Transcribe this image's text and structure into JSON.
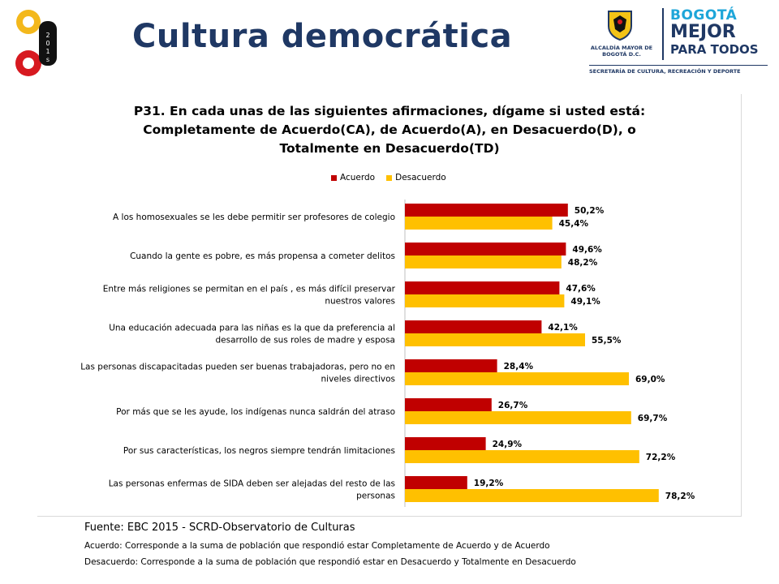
{
  "header": {
    "title": "Cultura democrática",
    "logo_left_text": "201s",
    "alcaldia": "ALCALDÍA MAYOR DE BOGOTÁ D.C.",
    "bogota_l1": "BOGOTÁ",
    "bogota_l2": "MEJOR",
    "bogota_l3": "PARA TODOS",
    "secretaria": "SECRETARÍA DE CULTURA, RECREACIÓN Y DEPORTE"
  },
  "colors": {
    "acuerdo": "#C00000",
    "desacuerdo": "#FFC000",
    "title": "#1f3864"
  },
  "chart_data": {
    "type": "bar",
    "orientation": "horizontal",
    "title_lines": [
      "P31. En cada unas de las siguientes afirmaciones, dígame si usted está:",
      "Completamente de Acuerdo(CA), de Acuerdo(A), en Desacuerdo(D), o",
      "Totalmente en Desacuerdo(TD)"
    ],
    "legend_position": "top",
    "categories": [
      [
        "A los homosexuales se les debe permitir ser profesores de colegio"
      ],
      [
        "Cuando la gente es pobre, es más propensa a cometer delitos"
      ],
      [
        "Entre más religiones se permitan en el país , es más difícil preservar",
        "nuestros valores"
      ],
      [
        "Una educación adecuada para las niñas es la que da preferencia al",
        "desarrollo de sus roles de madre y esposa"
      ],
      [
        "Las personas discapacitadas pueden ser buenas trabajadoras, pero no en",
        "niveles directivos"
      ],
      [
        "Por más que se les ayude, los indígenas nunca saldrán del atraso"
      ],
      [
        "Por sus características, los negros siempre tendrán limitaciones"
      ],
      [
        "Las personas enfermas de SIDA deben ser alejadas del resto de las",
        "personas"
      ]
    ],
    "series": [
      {
        "name": "Acuerdo",
        "values": [
          50.2,
          49.6,
          47.6,
          42.1,
          28.4,
          26.7,
          24.9,
          19.2
        ],
        "labels": [
          "50,2%",
          "49,6%",
          "47,6%",
          "42,1%",
          "28,4%",
          "26,7%",
          "24,9%",
          "19,2%"
        ]
      },
      {
        "name": "Desacuerdo",
        "values": [
          45.4,
          48.2,
          49.1,
          55.5,
          69.0,
          69.7,
          72.2,
          78.2
        ],
        "labels": [
          "45,4%",
          "48,2%",
          "49,1%",
          "55,5%",
          "69,0%",
          "69,7%",
          "72,2%",
          "78,2%"
        ]
      }
    ],
    "xlim": [
      0,
      100
    ],
    "grid": false
  },
  "footer": {
    "source": "Fuente: EBC 2015 - SCRD-Observatorio de Culturas",
    "note1": "Acuerdo: Corresponde a la suma de población que respondió estar Completamente de Acuerdo y de Acuerdo",
    "note2": "Desacuerdo: Corresponde a la suma de población que respondió estar en Desacuerdo y Totalmente en Desacuerdo"
  }
}
